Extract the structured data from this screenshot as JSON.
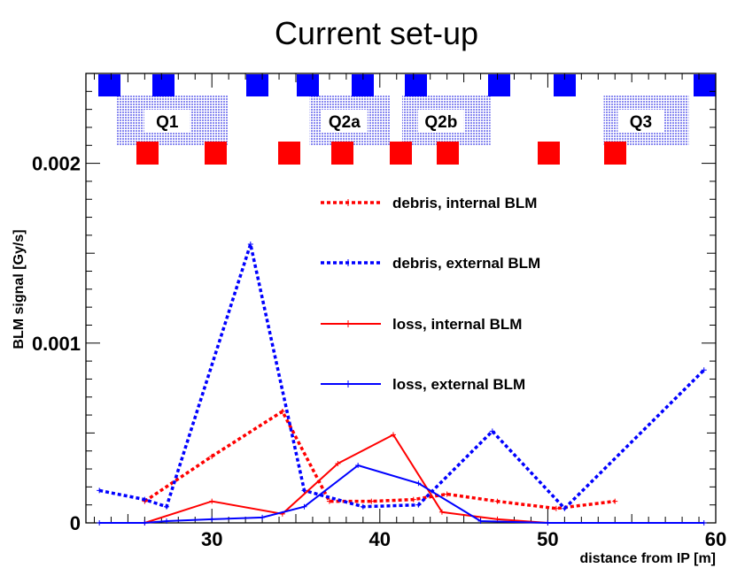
{
  "chart_data": {
    "type": "line",
    "title": "Current set-up",
    "xlabel": "distance from IP [m]",
    "ylabel": "BLM signal [Gy/s]",
    "xlim": [
      22.5,
      60
    ],
    "ylim": [
      0,
      0.0025
    ],
    "x_ticks": [
      30,
      40,
      50,
      60
    ],
    "x_tick_labels": [
      "30",
      "40",
      "50",
      "60"
    ],
    "y_ticks": [
      0,
      0.001,
      0.002
    ],
    "y_tick_labels": [
      "0",
      "0.001",
      "0.002"
    ],
    "legend_position": "right",
    "series": [
      {
        "name": "debris, internal BLM",
        "color": "#ff0000",
        "dash": "dotted",
        "x": [
          26,
          30,
          34.2,
          37,
          39.5,
          42,
          44,
          47,
          50.5,
          54
        ],
        "y": [
          0.00012,
          0.00037,
          0.00062,
          0.00012,
          0.00012,
          0.00013,
          0.00016,
          0.00012,
          8e-05,
          0.00012
        ]
      },
      {
        "name": "debris, external BLM",
        "color": "#0000ff",
        "dash": "dotted",
        "x": [
          23.3,
          26,
          27.3,
          32.3,
          35.5,
          39,
          42.3,
          46.7,
          51,
          59.3
        ],
        "y": [
          0.00018,
          0.00013,
          9e-05,
          0.00155,
          0.00018,
          9e-05,
          0.0001,
          0.00051,
          8e-05,
          0.00085
        ]
      },
      {
        "name": "loss, internal BLM",
        "color": "#ff0000",
        "dash": "solid",
        "x": [
          26,
          30,
          34.2,
          37.5,
          40.8,
          43.7,
          47,
          50
        ],
        "y": [
          0.0,
          0.00012,
          5e-05,
          0.00033,
          0.00049,
          6e-05,
          2e-05,
          0.0
        ]
      },
      {
        "name": "loss, external BLM",
        "color": "#0000ff",
        "dash": "solid",
        "x": [
          23.3,
          26,
          27.3,
          30,
          33,
          35.5,
          38.7,
          42.3,
          46,
          50,
          59.3
        ],
        "y": [
          0.0,
          0.0,
          1e-05,
          2e-05,
          3e-05,
          9e-05,
          0.00032,
          0.00022,
          1e-05,
          0.0,
          0.0
        ]
      }
    ],
    "magnets": [
      {
        "label": "Q1",
        "start": 23.8,
        "end": 31.2
      },
      {
        "label": "Q2a",
        "start": 35.3,
        "end": 40.8
      },
      {
        "label": "Q2b",
        "start": 40.8,
        "end": 46.8
      },
      {
        "label": "Q3",
        "start": 52.8,
        "end": 58.6
      }
    ],
    "blue_markers_x": [
      24.2,
      29.2,
      36.6,
      41.6,
      47.6,
      52.6,
      57.6,
      74.5
    ],
    "red_markers_x": [
      28.2,
      33.2,
      39.8,
      44.8,
      50.8,
      55.8,
      62.4,
      67.4
    ],
    "marker_colors": {
      "blue": "#0000ff",
      "red": "#ff0000",
      "magnet": "#8a8af0"
    }
  }
}
